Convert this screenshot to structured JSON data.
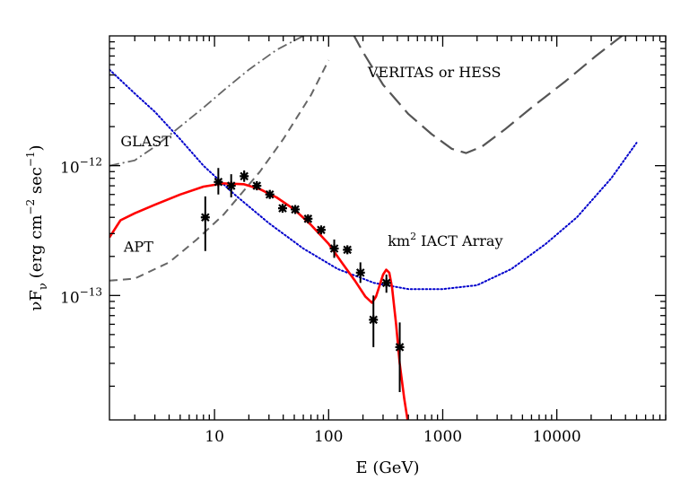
{
  "chart_data": {
    "type": "line",
    "title": "",
    "xlabel": "E (GeV)",
    "ylabel": {
      "base": "νF",
      "sub": "ν",
      "units_pre": "(erg cm",
      "exp1": "−2",
      "units_mid": " sec",
      "exp2": "−1",
      "units_post": ")"
    },
    "x_scale": "log",
    "y_scale": "log",
    "xlim": [
      1.2,
      90000
    ],
    "ylim": [
      1.1e-14,
      1e-11
    ],
    "x_ticks": [
      {
        "value": 10,
        "label": "10"
      },
      {
        "value": 100,
        "label": "100"
      },
      {
        "value": 1000,
        "label": "1000"
      },
      {
        "value": 10000,
        "label": "10000"
      }
    ],
    "y_ticks": [
      {
        "value": 1e-12,
        "base": "10",
        "exp": "−12"
      },
      {
        "value": 1e-13,
        "base": "10",
        "exp": "−13"
      }
    ],
    "grid": false,
    "annotations": [
      {
        "text": "GLAST",
        "x": 1.5,
        "y": 1.55e-12
      },
      {
        "text": "APT",
        "x": 1.6,
        "y": 2.4e-13
      },
      {
        "text": "VERITAS or HESS",
        "x": 220,
        "y": 5.3e-12
      }
    ],
    "iact_label": {
      "base": "km",
      "exp": "2",
      "rest": " IACT Array",
      "x": 330,
      "y": 2.65e-13
    },
    "series": [
      {
        "style": "dash-dot",
        "color": "#666666",
        "x": [
          1.2,
          2,
          3,
          5,
          8,
          12,
          20,
          35,
          60,
          100
        ],
        "y": [
          1e-12,
          1.1e-12,
          1.4e-12,
          2e-12,
          2.8e-12,
          3.8e-12,
          5.5e-12,
          7.8e-12,
          1e-11,
          1.3e-11
        ]
      },
      {
        "style": "dashed",
        "color": "#666666",
        "x": [
          1.2,
          2,
          4,
          7,
          12,
          25,
          40,
          70,
          100
        ],
        "y": [
          1.3e-13,
          1.35e-13,
          1.8e-13,
          2.7e-13,
          4.2e-13,
          9e-13,
          1.6e-12,
          3.5e-12,
          6.5e-12
        ]
      },
      {
        "style": "long-dashed",
        "color": "#555555",
        "x": [
          130,
          200,
          300,
          500,
          800,
          1200,
          1600,
          2200,
          3500,
          6000,
          12000,
          22000,
          40000
        ],
        "y": [
          1.5e-11,
          7.5e-12,
          4.2e-12,
          2.5e-12,
          1.75e-12,
          1.35e-12,
          1.25e-12,
          1.4e-12,
          1.9e-12,
          2.8e-12,
          4.5e-12,
          7e-12,
          1.05e-11
        ]
      },
      {
        "style": "dotted",
        "color": "#0000cc",
        "x": [
          1.2,
          2,
          3,
          5,
          8,
          15,
          30,
          60,
          120,
          250,
          500,
          1000,
          2000,
          4000,
          8000,
          15000,
          30000,
          50000
        ],
        "y": [
          5.5e-12,
          3.6e-12,
          2.6e-12,
          1.6e-12,
          1e-12,
          6e-13,
          3.6e-13,
          2.3e-13,
          1.6e-13,
          1.25e-13,
          1.12e-13,
          1.12e-13,
          1.2e-13,
          1.6e-13,
          2.5e-13,
          4e-13,
          8e-13,
          1.5e-12
        ]
      },
      {
        "style": "solid",
        "color": "#ff0000",
        "x": [
          1.2,
          1.5,
          2,
          3,
          5,
          8,
          12,
          18,
          25,
          35,
          50,
          70,
          100,
          130,
          170,
          210,
          240,
          260,
          280,
          300,
          320,
          340,
          360,
          390,
          420,
          460,
          500
        ],
        "y": [
          2.8e-13,
          3.8e-13,
          4.3e-13,
          5e-13,
          6e-13,
          6.9e-13,
          7.3e-13,
          7.2e-13,
          6.6e-13,
          5.7e-13,
          4.6e-13,
          3.5e-13,
          2.5e-13,
          1.8e-13,
          1.3e-13,
          9.8e-14,
          8.8e-14,
          9.8e-14,
          1.2e-13,
          1.45e-13,
          1.58e-13,
          1.5e-13,
          1.15e-13,
          6e-14,
          3e-14,
          1.6e-14,
          1e-14
        ]
      }
    ],
    "data_points": {
      "x": [
        8.3,
        10.8,
        14.0,
        18.2,
        23.5,
        30.5,
        39.5,
        51,
        66,
        86,
        112,
        146,
        190,
        247,
        321,
        420
      ],
      "y": [
        4e-13,
        7.5e-13,
        7e-13,
        8.3e-13,
        7e-13,
        6e-13,
        4.7e-13,
        4.6e-13,
        3.9e-13,
        3.2e-13,
        2.3e-13,
        2.25e-13,
        1.5e-13,
        6.5e-14,
        1.25e-13,
        4e-14
      ],
      "yerr_low": [
        2.2e-13,
        6e-13,
        5.7e-13,
        7.5e-13,
        6.5e-13,
        5.6e-13,
        4.4e-13,
        4.3e-13,
        3.7e-13,
        3e-13,
        1.95e-13,
        2.1e-13,
        1.25e-13,
        4e-14,
        1.05e-13,
        1.8e-14
      ],
      "yerr_high": [
        5.8e-13,
        9.6e-13,
        8.6e-13,
        9.2e-13,
        7.6e-13,
        6.5e-13,
        5e-13,
        4.9e-13,
        4.1e-13,
        3.4e-13,
        2.7e-13,
        2.4e-13,
        1.8e-13,
        1e-13,
        1.45e-13,
        6.2e-14
      ]
    }
  }
}
